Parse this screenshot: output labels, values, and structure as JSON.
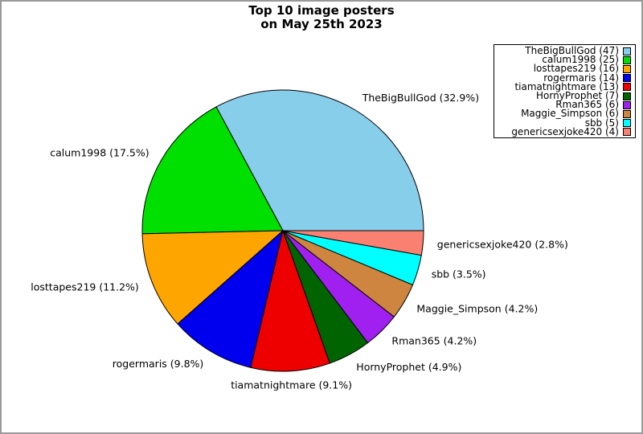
{
  "title": {
    "line1": "Top 10 image posters",
    "line2": "on May 25th 2023"
  },
  "chart_data": {
    "type": "pie",
    "title": "Top 10 image posters on May 25th 2023",
    "start_angle_deg": 0,
    "direction": "counterclockwise",
    "legend_position": "upper right",
    "legend_marker_side": "right",
    "slice_label_format": "{label} ({pct}%)",
    "legend_label_format": "{label} ({count})",
    "total_count": 143,
    "series": [
      {
        "label": "TheBigBullGod",
        "count": 47,
        "pct": "32.9",
        "color": "#87CEEB"
      },
      {
        "label": "calum1998",
        "count": 25,
        "pct": "17.5",
        "color": "#00E000"
      },
      {
        "label": "losttapes219",
        "count": 16,
        "pct": "11.2",
        "color": "#FFA500"
      },
      {
        "label": "rogermaris",
        "count": 14,
        "pct": "9.8",
        "color": "#0000EE"
      },
      {
        "label": "tiamatnightmare",
        "count": 13,
        "pct": "9.1",
        "color": "#EE0000"
      },
      {
        "label": "HornyProphet",
        "count": 7,
        "pct": "4.9",
        "color": "#006400"
      },
      {
        "label": "Rman365",
        "count": 6,
        "pct": "4.2",
        "color": "#A020F0"
      },
      {
        "label": "Maggie_Simpson",
        "count": 6,
        "pct": "4.2",
        "color": "#CD853F"
      },
      {
        "label": "sbb",
        "count": 5,
        "pct": "3.5",
        "color": "#00FFFF"
      },
      {
        "label": "genericsexjoke420",
        "count": 4,
        "pct": "2.8",
        "color": "#FA8072"
      }
    ]
  }
}
